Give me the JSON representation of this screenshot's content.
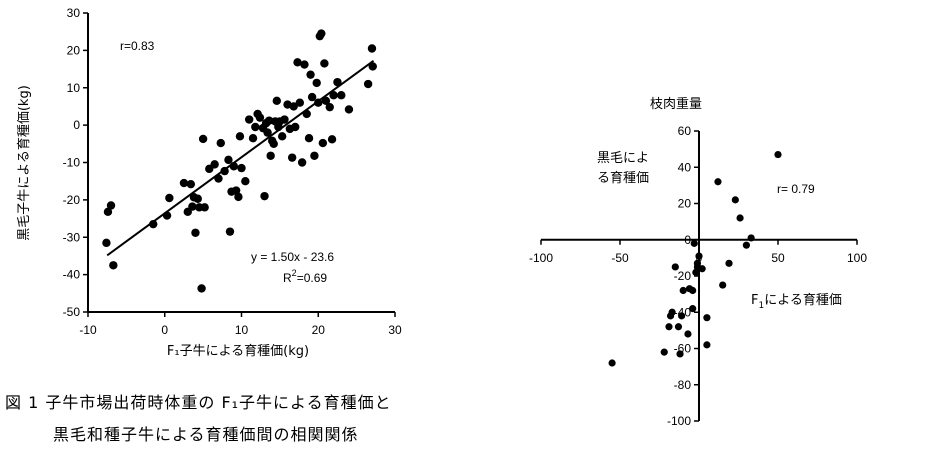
{
  "caption": {
    "line1": "図 1 子牛市場出荷時体重の F₁子牛による育種価と",
    "line2": "黒毛和種子牛による育種価間の相関関係"
  },
  "chart_data": [
    {
      "type": "scatter",
      "ylabel": "黒毛子牛による育種価(kg)",
      "xlabel": "F₁子牛による育種価(kg)",
      "xlim": [
        -10,
        30
      ],
      "ylim": [
        -50,
        30
      ],
      "xticks": [
        "-10",
        "0",
        "10",
        "20",
        "30"
      ],
      "yticks": [
        "30",
        "20",
        "10",
        "0",
        "-10",
        "-20",
        "-30",
        "-40",
        "-50"
      ],
      "annotations": {
        "r": "r=0.83",
        "equation": "y = 1.50x - 23.6",
        "r2_prefix": "R",
        "r2_sup": "2",
        "r2_value": "=0.69"
      },
      "regression": {
        "slope": 1.5,
        "intercept": -23.6,
        "x_from": -7.5,
        "x_to": 27.2
      },
      "points": [
        [
          -7.6,
          -31.5
        ],
        [
          -7.4,
          -23.2
        ],
        [
          -7.0,
          -21.5
        ],
        [
          -6.7,
          -37.5
        ],
        [
          -1.5,
          -26.5
        ],
        [
          0.3,
          -24.2
        ],
        [
          0.6,
          -19.5
        ],
        [
          2.5,
          -15.5
        ],
        [
          3.0,
          -23.2
        ],
        [
          3.4,
          -15.8
        ],
        [
          3.6,
          -21.8
        ],
        [
          3.8,
          -19.3
        ],
        [
          4.0,
          -28.8
        ],
        [
          4.3,
          -19.7
        ],
        [
          4.5,
          -22.0
        ],
        [
          4.8,
          -43.7
        ],
        [
          5.0,
          -3.7
        ],
        [
          5.2,
          -22.0
        ],
        [
          5.8,
          -11.7
        ],
        [
          6.5,
          -10.5
        ],
        [
          7.0,
          -14.3
        ],
        [
          7.3,
          -4.8
        ],
        [
          7.8,
          -12.3
        ],
        [
          8.3,
          -9.3
        ],
        [
          8.5,
          -28.5
        ],
        [
          8.7,
          -17.8
        ],
        [
          9.0,
          -11.0
        ],
        [
          9.3,
          -17.5
        ],
        [
          9.6,
          -19.2
        ],
        [
          9.8,
          -3.0
        ],
        [
          10.0,
          -11.5
        ],
        [
          10.5,
          -15.0
        ],
        [
          11.0,
          1.5
        ],
        [
          11.5,
          -3.5
        ],
        [
          11.8,
          -0.5
        ],
        [
          12.1,
          3.0
        ],
        [
          12.4,
          2.0
        ],
        [
          12.8,
          -0.8
        ],
        [
          13.0,
          -19.0
        ],
        [
          13.2,
          0.5
        ],
        [
          13.4,
          -2.0
        ],
        [
          13.6,
          1.2
        ],
        [
          13.8,
          -8.2
        ],
        [
          14.0,
          -4.2
        ],
        [
          14.2,
          -5.0
        ],
        [
          14.4,
          1.0
        ],
        [
          14.6,
          6.5
        ],
        [
          14.8,
          -0.5
        ],
        [
          15.0,
          1.0
        ],
        [
          15.3,
          -3.0
        ],
        [
          15.6,
          1.5
        ],
        [
          16.0,
          5.5
        ],
        [
          16.3,
          -1.0
        ],
        [
          16.6,
          -8.7
        ],
        [
          16.8,
          5.0
        ],
        [
          17.0,
          -0.5
        ],
        [
          17.3,
          16.8
        ],
        [
          17.6,
          6.0
        ],
        [
          17.9,
          -10.0
        ],
        [
          18.2,
          16.2
        ],
        [
          18.5,
          3.0
        ],
        [
          18.8,
          -3.5
        ],
        [
          19.0,
          13.5
        ],
        [
          19.2,
          7.5
        ],
        [
          19.5,
          -8.2
        ],
        [
          19.8,
          11.3
        ],
        [
          20.0,
          6.0
        ],
        [
          20.2,
          23.8
        ],
        [
          20.4,
          24.5
        ],
        [
          20.6,
          -4.8
        ],
        [
          20.8,
          16.5
        ],
        [
          21.0,
          6.5
        ],
        [
          21.5,
          4.8
        ],
        [
          21.8,
          -3.8
        ],
        [
          22.0,
          8.0
        ],
        [
          22.5,
          11.5
        ],
        [
          23.0,
          8.0
        ],
        [
          24.0,
          4.2
        ],
        [
          26.5,
          11.0
        ],
        [
          27.0,
          20.5
        ],
        [
          27.1,
          15.7
        ]
      ]
    },
    {
      "type": "scatter",
      "title": "枝肉重量",
      "ylabel_line1": "黒毛によ",
      "ylabel_line2": "る育種価",
      "xlabel_prefix": "F",
      "xlabel_sub": "1",
      "xlabel_suffix": "による育種価",
      "xlim": [
        -100,
        100
      ],
      "ylim": [
        -100,
        60
      ],
      "xticks": [
        "-100",
        "-50",
        "0",
        "50",
        "100"
      ],
      "yticks": [
        "60",
        "40",
        "20",
        "0",
        "-20",
        "-40",
        "-60",
        "-80",
        "-100"
      ],
      "annotations": {
        "r": "r= 0.79"
      },
      "points": [
        [
          -55,
          -68
        ],
        [
          -22,
          -62
        ],
        [
          -19,
          -48
        ],
        [
          -18,
          -42
        ],
        [
          -17,
          -40
        ],
        [
          -15,
          -15
        ],
        [
          -13,
          -48
        ],
        [
          -12,
          -63
        ],
        [
          -11,
          -42
        ],
        [
          -10,
          -28
        ],
        [
          -7,
          -52
        ],
        [
          -6,
          -27
        ],
        [
          -4,
          -28
        ],
        [
          -4,
          -38
        ],
        [
          -3,
          -2
        ],
        [
          -2,
          -18
        ],
        [
          -1,
          -13
        ],
        [
          -1,
          -15
        ],
        [
          0,
          -9
        ],
        [
          2,
          -16
        ],
        [
          5,
          -58
        ],
        [
          5,
          -43
        ],
        [
          12,
          32
        ],
        [
          15,
          -25
        ],
        [
          19,
          -13
        ],
        [
          23,
          22
        ],
        [
          26,
          12
        ],
        [
          30,
          -3
        ],
        [
          33,
          1
        ],
        [
          50,
          47
        ]
      ]
    }
  ]
}
